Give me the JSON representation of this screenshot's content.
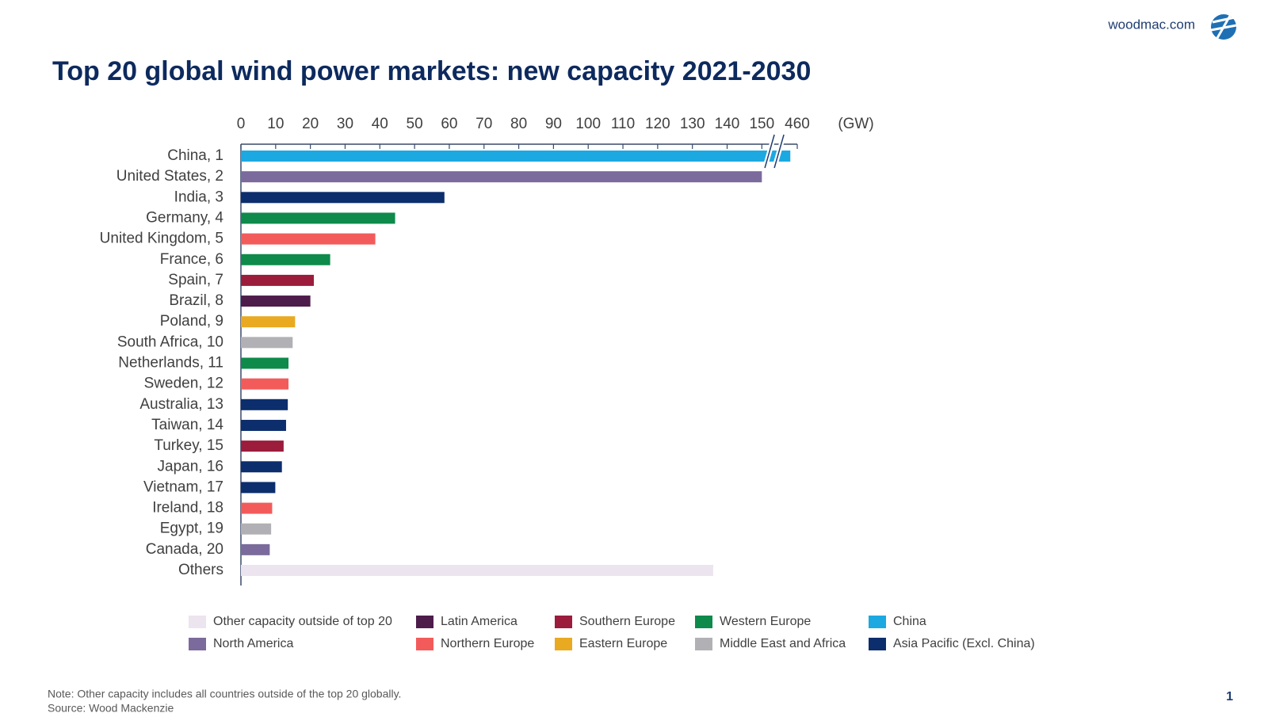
{
  "brand": "woodmac.com",
  "page_number": 1,
  "note": "Note: Other capacity includes all countries outside of the top 20 globally.",
  "source": "Source: Wood Mackenzie",
  "chart_data": {
    "type": "bar",
    "orientation": "horizontal",
    "title": "Top 20 global wind power markets: new capacity 2021-2030",
    "xlabel": "(GW)",
    "categories": [
      "China, 1",
      "United States, 2",
      "India, 3",
      "Germany, 4",
      "United Kingdom, 5",
      "France, 6",
      "Spain, 7",
      "Brazil, 8",
      "Poland, 9",
      "South Africa, 10",
      "Netherlands, 11",
      "Sweden, 12",
      "Australia, 13",
      "Taiwan, 14",
      "Turkey, 15",
      "Japan, 16",
      "Vietnam, 17",
      "Ireland, 18",
      "Egypt, 19",
      "Canada, 20",
      "Others"
    ],
    "xlim": [
      0,
      460
    ],
    "xbreak": [
      152,
      455
    ],
    "xticks": [
      0,
      10,
      20,
      30,
      40,
      50,
      60,
      70,
      80,
      90,
      100,
      110,
      120,
      130,
      140,
      150,
      460
    ],
    "series": [
      {
        "name": "Other capacity outside of top 20",
        "color": "#ece4ee",
        "values": [
          null,
          null,
          null,
          null,
          null,
          null,
          null,
          null,
          null,
          null,
          null,
          null,
          null,
          null,
          null,
          null,
          null,
          null,
          null,
          null,
          136
        ]
      },
      {
        "name": "North America",
        "color": "#7b6b9c",
        "values": [
          null,
          150,
          null,
          null,
          null,
          null,
          null,
          null,
          null,
          null,
          null,
          null,
          null,
          null,
          null,
          null,
          null,
          null,
          null,
          8.3,
          null
        ]
      },
      {
        "name": "Latin America",
        "color": "#4d1c4b",
        "values": [
          null,
          null,
          null,
          null,
          null,
          null,
          null,
          20,
          null,
          null,
          null,
          null,
          null,
          null,
          null,
          null,
          null,
          null,
          null,
          null,
          null
        ]
      },
      {
        "name": "Northern Europe",
        "color": "#f35b5b",
        "values": [
          null,
          null,
          null,
          null,
          38.7,
          null,
          null,
          null,
          null,
          null,
          null,
          13.7,
          null,
          null,
          null,
          null,
          null,
          9,
          null,
          null,
          null
        ]
      },
      {
        "name": "Southern Europe",
        "color": "#9c1c3b",
        "values": [
          null,
          null,
          null,
          null,
          null,
          null,
          21,
          null,
          null,
          null,
          null,
          null,
          null,
          null,
          12.3,
          null,
          null,
          null,
          null,
          null,
          null
        ]
      },
      {
        "name": "Eastern Europe",
        "color": "#e9a921",
        "values": [
          null,
          null,
          null,
          null,
          null,
          null,
          null,
          null,
          15.6,
          null,
          null,
          null,
          null,
          null,
          null,
          null,
          null,
          null,
          null,
          null,
          null
        ]
      },
      {
        "name": "Western Europe",
        "color": "#0e8a4b",
        "values": [
          null,
          null,
          null,
          44.4,
          null,
          25.7,
          null,
          null,
          null,
          null,
          13.7,
          null,
          null,
          null,
          null,
          null,
          null,
          null,
          null,
          null,
          null
        ]
      },
      {
        "name": "Middle East and Africa",
        "color": "#b1b1b5",
        "values": [
          null,
          null,
          null,
          null,
          null,
          null,
          null,
          null,
          null,
          14.9,
          null,
          null,
          null,
          null,
          null,
          null,
          null,
          null,
          8.7,
          null,
          null
        ]
      },
      {
        "name": "China",
        "color": "#1ca9e1",
        "values": [
          458,
          null,
          null,
          null,
          null,
          null,
          null,
          null,
          null,
          null,
          null,
          null,
          null,
          null,
          null,
          null,
          null,
          null,
          null,
          null,
          null
        ]
      },
      {
        "name": "Asia Pacific (Excl. China)",
        "color": "#0c2e6d",
        "values": [
          null,
          null,
          58.6,
          null,
          null,
          null,
          null,
          null,
          null,
          null,
          null,
          null,
          13.5,
          13,
          null,
          11.8,
          9.9,
          null,
          null,
          null,
          null
        ]
      }
    ]
  }
}
